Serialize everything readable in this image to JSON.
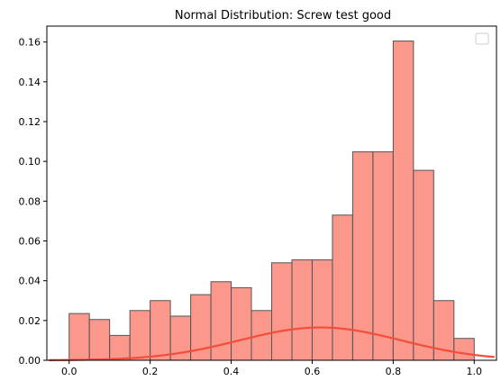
{
  "chart_data": {
    "type": "bar",
    "title": "Normal Distribution: Screw test good",
    "xlabel": "",
    "ylabel": "",
    "xlim": [
      -0.055,
      1.055
    ],
    "ylim": [
      0,
      0.168
    ],
    "x_ticks": [
      0.0,
      0.2,
      0.4,
      0.6,
      0.8,
      1.0
    ],
    "x_tick_labels": [
      "0.0",
      "0.2",
      "0.4",
      "0.6",
      "0.8",
      "1.0"
    ],
    "y_ticks": [
      0.0,
      0.02,
      0.04,
      0.06,
      0.08,
      0.1,
      0.12,
      0.14,
      0.16
    ],
    "y_tick_labels": [
      "0.00",
      "0.02",
      "0.04",
      "0.06",
      "0.08",
      "0.10",
      "0.12",
      "0.14",
      "0.16"
    ],
    "grid": false,
    "legend": "top-right (empty)",
    "series": [
      {
        "type": "histogram",
        "bin_edges": [
          0.0,
          0.05,
          0.1,
          0.15,
          0.2,
          0.25,
          0.3,
          0.35,
          0.4,
          0.45,
          0.5,
          0.55,
          0.6,
          0.65,
          0.7,
          0.75,
          0.8,
          0.85,
          0.9,
          0.95,
          1.0
        ],
        "values": [
          0.0235,
          0.0205,
          0.0125,
          0.025,
          0.03,
          0.0222,
          0.033,
          0.0395,
          0.0365,
          0.025,
          0.049,
          0.0505,
          0.0505,
          0.073,
          0.1048,
          0.1048,
          0.1605,
          0.0955,
          0.03,
          0.011
        ],
        "fill": "#fa8072",
        "edge": "#555555"
      },
      {
        "type": "line",
        "curve": "normal-pdf",
        "mean": 0.62,
        "std": 0.2,
        "scale": 0.0165,
        "x_range": [
          -0.05,
          1.05
        ],
        "color": "#f44e3b"
      }
    ]
  }
}
